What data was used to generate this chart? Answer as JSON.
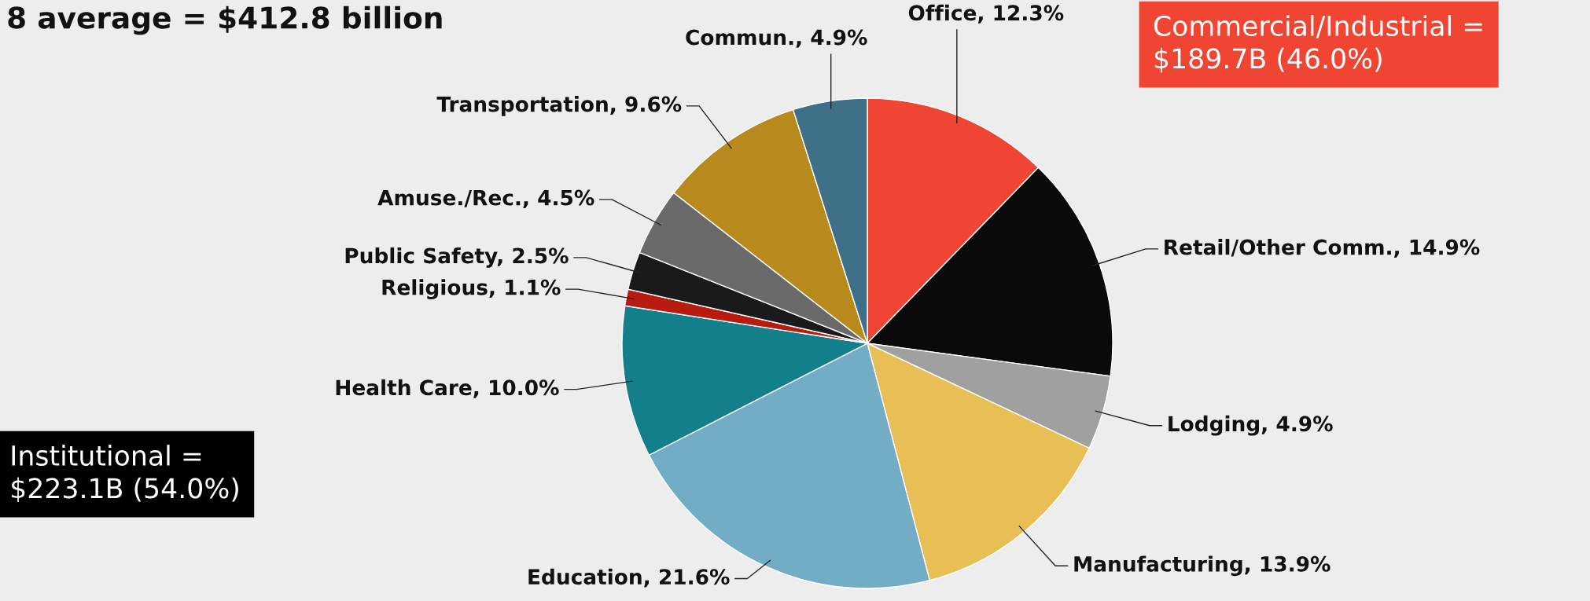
{
  "chart_data": {
    "type": "pie",
    "title": "8 average = $412.8 billion",
    "categories": [
      "Office",
      "Retail/Other Comm.",
      "Lodging",
      "Manufacturing",
      "Education",
      "Health Care",
      "Religious",
      "Public Safety",
      "Amuse./Rec.",
      "Transportation",
      "Commun."
    ],
    "values": [
      12.3,
      14.9,
      4.9,
      13.9,
      21.6,
      10.0,
      1.1,
      2.5,
      4.5,
      9.6,
      4.9
    ],
    "value_labels": [
      "12.3%",
      "14.9%",
      "4.9%",
      "13.9%",
      "21.6%",
      "10.0%",
      "1.1%",
      "2.5%",
      "4.5%",
      "9.6%",
      "4.9%"
    ],
    "colors": [
      "#f04533",
      "#0a0a0a",
      "#a0a0a0",
      "#e8bf55",
      "#72adc5",
      "#137f8b",
      "#b81c10",
      "#1a1a1a",
      "#6a6a6a",
      "#b8891c",
      "#3e7088"
    ],
    "annotations": [
      "Commercial/Industrial = $189.7B (46.0%)",
      "Institutional = $223.1B (54.0%)"
    ],
    "legend": false
  }
}
